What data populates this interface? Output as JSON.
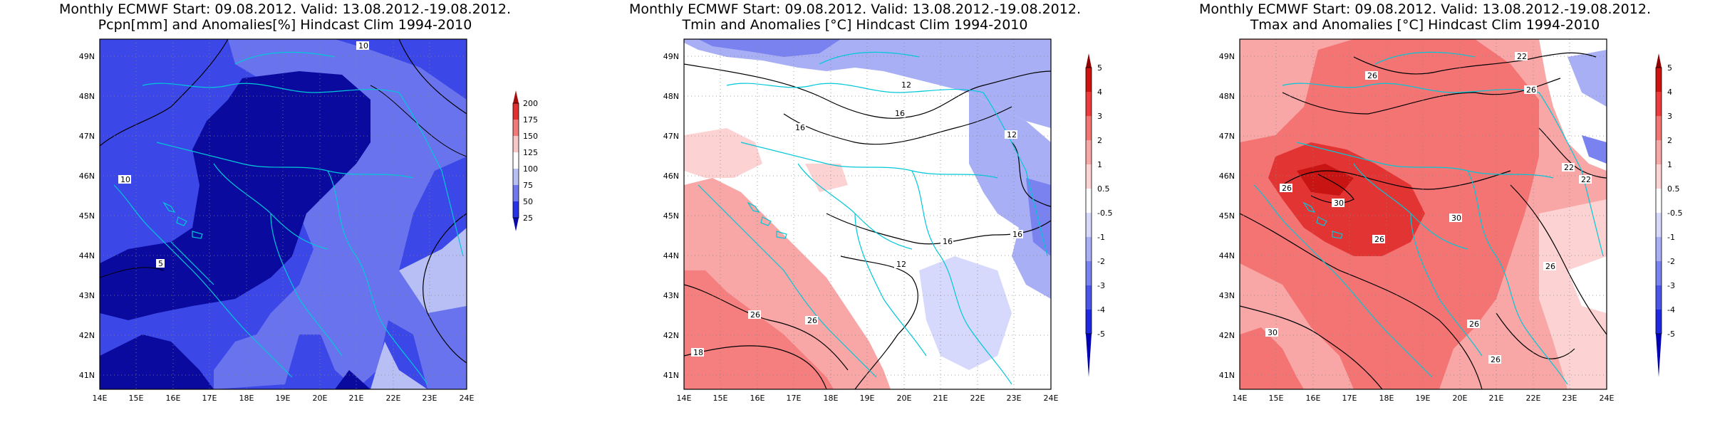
{
  "panels": [
    {
      "title_line1": "Monthly ECMWF Start: 09.08.2012. Valid: 13.08.2012.-19.08.2012.",
      "title_line2": "Pcpn[mm] and Anomalies[%] Hindcast Clim 1994-2010",
      "colorbar": {
        "labels": [
          "200",
          "175",
          "150",
          "125",
          "100",
          "75",
          "50",
          "25"
        ],
        "colors": [
          "#a30f0f",
          "#e03030",
          "#f07a7a",
          "#f8c8c8",
          "#ffffff",
          "#b8bff5",
          "#6f78ee",
          "#2833e6",
          "#0a0aa8"
        ]
      },
      "contour_labels": [
        "10",
        "10",
        "5"
      ]
    },
    {
      "title_line1": "Monthly ECMWF Start: 09.08.2012. Valid: 13.08.2012.-19.08.2012.",
      "title_line2": "Tmin and Anomalies [°C] Hindcast Clim 1994-2010",
      "colorbar": {
        "labels": [
          "5",
          "4",
          "3",
          "2",
          "1",
          "0.5",
          "-0.5",
          "-1",
          "-2",
          "-3",
          "-4",
          "-5"
        ],
        "colors": [
          "#8f0000",
          "#d11010",
          "#ee3a3a",
          "#f47474",
          "#f8a6a6",
          "#fcd2d2",
          "#ffffff",
          "#d6d9fb",
          "#a9aff5",
          "#7a82ef",
          "#4a55ea",
          "#1e28e5",
          "#0000b5"
        ]
      },
      "contour_labels": [
        "12",
        "16",
        "16",
        "12",
        "16",
        "12",
        "16",
        "26",
        "26",
        "18"
      ]
    },
    {
      "title_line1": "Monthly ECMWF Start: 09.08.2012. Valid: 13.08.2012.-19.08.2012.",
      "title_line2": "Tmax and Anomalies [°C] Hindcast Clim 1994-2010",
      "colorbar": {
        "labels": [
          "5",
          "4",
          "3",
          "2",
          "1",
          "0.5",
          "-0.5",
          "-1",
          "-2",
          "-3",
          "-4",
          "-5"
        ],
        "colors": [
          "#8f0000",
          "#d11010",
          "#ee3a3a",
          "#f47474",
          "#f8a6a6",
          "#fcd2d2",
          "#ffffff",
          "#d6d9fb",
          "#a9aff5",
          "#7a82ef",
          "#4a55ea",
          "#1e28e5",
          "#0000b5"
        ]
      },
      "contour_labels": [
        "22",
        "26",
        "26",
        "22",
        "22",
        "26",
        "30",
        "30",
        "26",
        "26",
        "26",
        "26",
        "30"
      ]
    }
  ],
  "lat_labels": [
    "49N",
    "48N",
    "47N",
    "46N",
    "45N",
    "44N",
    "43N",
    "42N",
    "41N"
  ],
  "lon_labels": [
    "14E",
    "15E",
    "16E",
    "17E",
    "18E",
    "19E",
    "20E",
    "21E",
    "22E",
    "23E",
    "24E"
  ],
  "coast_color": "#00c8d8"
}
